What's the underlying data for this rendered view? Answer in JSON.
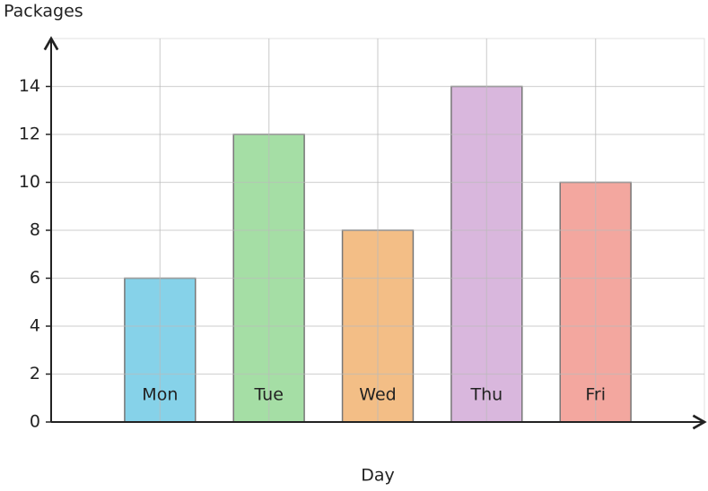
{
  "chart_data": {
    "type": "bar",
    "x_label": "Day",
    "y_label": "Packages",
    "categories": [
      "Mon",
      "Tue",
      "Wed",
      "Thu",
      "Fri"
    ],
    "values": [
      6,
      12,
      8,
      14,
      10
    ],
    "colors": [
      "#7fd0e8",
      "#a0dca0",
      "#f2bb80",
      "#d7b3db",
      "#f2a29a"
    ],
    "ylim": [
      0,
      16
    ],
    "yticks": [
      0,
      2,
      4,
      6,
      8,
      10,
      12,
      14
    ],
    "grid": true
  }
}
